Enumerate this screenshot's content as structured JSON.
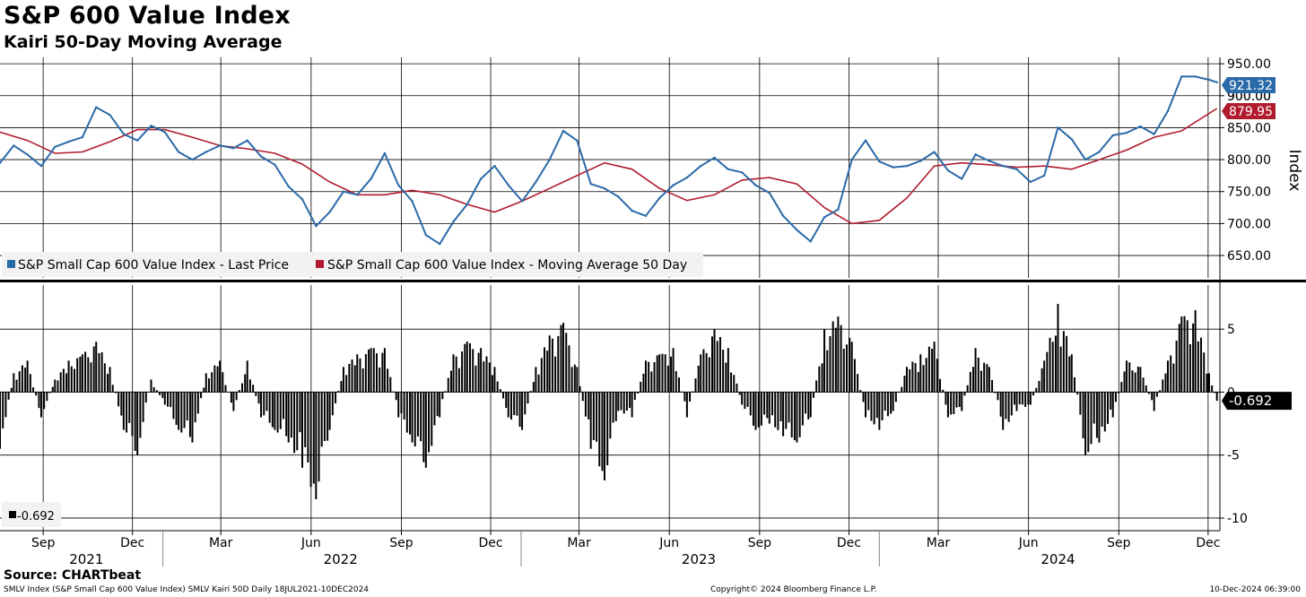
{
  "title": "S&P 600 Value Index",
  "subtitle": "Kairi 50-Day Moving Average",
  "source": "Source: CHARTbeat",
  "footer": {
    "left": "SMLV Index (S&P Small Cap 600 Value Index) SMLV Kairi 50D  Daily 18JUL2021-10DEC2024",
    "center": "Copyright© 2024 Bloomberg Finance L.P.",
    "right": "10-Dec-2024 06:39:00"
  },
  "colors": {
    "price": "#2a6aa8",
    "ma": "#b01c2e",
    "kairi": "#000000",
    "grid": "#000000"
  },
  "chart_data": [
    {
      "type": "line",
      "y_axis_title": "Index",
      "ylim": [
        615,
        960
      ],
      "y_ticks": [
        "950.00",
        "900.00",
        "850.00",
        "800.00",
        "750.00",
        "700.00",
        "650.00"
      ],
      "y_tick_values": [
        950,
        900,
        850,
        800,
        750,
        700,
        650
      ],
      "legend": [
        "S&P Small Cap 600 Value Index - Last Price",
        "S&P Small Cap 600 Value Index - Moving Average 50 Day"
      ],
      "legend_position": "bottom-left",
      "last_labels": {
        "price": "921.32",
        "ma": "879.95",
        "hidden": "900.00"
      },
      "series": [
        {
          "name": "S&P Small Cap 600 Value Index - Last Price",
          "x": [
            "2021-07-19",
            "2021-08-02",
            "2021-08-16",
            "2021-08-30",
            "2021-09-13",
            "2021-09-27",
            "2021-10-11",
            "2021-10-25",
            "2021-11-08",
            "2021-11-22",
            "2021-12-06",
            "2021-12-20",
            "2022-01-03",
            "2022-01-17",
            "2022-01-31",
            "2022-02-14",
            "2022-02-28",
            "2022-03-14",
            "2022-03-28",
            "2022-04-11",
            "2022-04-25",
            "2022-05-09",
            "2022-05-23",
            "2022-06-06",
            "2022-06-20",
            "2022-07-04",
            "2022-07-18",
            "2022-08-01",
            "2022-08-15",
            "2022-08-29",
            "2022-09-12",
            "2022-09-26",
            "2022-10-10",
            "2022-10-24",
            "2022-11-07",
            "2022-11-21",
            "2022-12-05",
            "2022-12-19",
            "2023-01-02",
            "2023-01-16",
            "2023-01-30",
            "2023-02-13",
            "2023-02-27",
            "2023-03-13",
            "2023-03-27",
            "2023-04-10",
            "2023-04-24",
            "2023-05-08",
            "2023-05-22",
            "2023-06-05",
            "2023-06-19",
            "2023-07-03",
            "2023-07-17",
            "2023-07-31",
            "2023-08-14",
            "2023-08-28",
            "2023-09-11",
            "2023-09-25",
            "2023-10-09",
            "2023-10-23",
            "2023-11-06",
            "2023-11-20",
            "2023-12-04",
            "2023-12-18",
            "2024-01-01",
            "2024-01-15",
            "2024-01-29",
            "2024-02-12",
            "2024-02-26",
            "2024-03-11",
            "2024-03-25",
            "2024-04-08",
            "2024-04-22",
            "2024-05-06",
            "2024-05-20",
            "2024-06-03",
            "2024-06-17",
            "2024-07-01",
            "2024-07-15",
            "2024-07-29",
            "2024-08-12",
            "2024-08-26",
            "2024-09-09",
            "2024-09-23",
            "2024-10-07",
            "2024-10-21",
            "2024-11-04",
            "2024-11-18",
            "2024-12-02",
            "2024-12-10"
          ],
          "values": [
            795,
            822,
            808,
            790,
            820,
            828,
            835,
            882,
            870,
            840,
            830,
            853,
            843,
            812,
            800,
            812,
            822,
            818,
            830,
            805,
            792,
            758,
            738,
            696,
            718,
            750,
            745,
            770,
            810,
            760,
            735,
            682,
            668,
            703,
            730,
            770,
            790,
            760,
            735,
            765,
            800,
            845,
            830,
            762,
            755,
            742,
            720,
            712,
            740,
            760,
            772,
            790,
            803,
            785,
            780,
            760,
            748,
            712,
            690,
            672,
            710,
            722,
            800,
            830,
            797,
            788,
            790,
            798,
            812,
            783,
            770,
            808,
            798,
            790,
            785,
            765,
            775,
            850,
            832,
            800,
            812,
            838,
            842,
            852,
            840,
            876,
            930,
            930,
            925,
            921
          ]
        },
        {
          "name": "S&P Small Cap 600 Value Index - Moving Average 50 Day",
          "x": [
            "2021-07-19",
            "2021-08-16",
            "2021-09-13",
            "2021-10-11",
            "2021-11-08",
            "2021-12-06",
            "2022-01-03",
            "2022-01-31",
            "2022-02-28",
            "2022-03-28",
            "2022-04-25",
            "2022-05-23",
            "2022-06-20",
            "2022-07-18",
            "2022-08-15",
            "2022-09-12",
            "2022-10-10",
            "2022-11-07",
            "2022-12-05",
            "2023-01-02",
            "2023-01-30",
            "2023-02-27",
            "2023-03-27",
            "2023-04-24",
            "2023-05-22",
            "2023-06-19",
            "2023-07-17",
            "2023-08-14",
            "2023-09-11",
            "2023-10-09",
            "2023-11-06",
            "2023-12-04",
            "2024-01-01",
            "2024-01-29",
            "2024-02-26",
            "2024-03-25",
            "2024-04-22",
            "2024-05-20",
            "2024-06-17",
            "2024-07-15",
            "2024-08-12",
            "2024-09-09",
            "2024-10-07",
            "2024-11-04",
            "2024-12-10"
          ],
          "values": [
            843,
            830,
            810,
            812,
            828,
            847,
            847,
            835,
            822,
            817,
            810,
            793,
            765,
            745,
            745,
            752,
            745,
            730,
            718,
            735,
            755,
            775,
            795,
            785,
            755,
            736,
            745,
            768,
            772,
            762,
            725,
            700,
            705,
            740,
            790,
            795,
            792,
            788,
            790,
            785,
            800,
            815,
            835,
            845,
            880
          ]
        }
      ]
    },
    {
      "type": "bar",
      "ylim": [
        -11,
        8.5
      ],
      "y_ticks": [
        "5",
        "0",
        "-5",
        "-10"
      ],
      "y_tick_values": [
        5,
        0,
        -5,
        -10
      ],
      "legend": [
        "-0.692"
      ],
      "legend_position": "bottom-left",
      "last_value_label": "-0.692",
      "series": [
        {
          "x": [
            "2021-07-19",
            "2021-08-02",
            "2021-08-16",
            "2021-08-30",
            "2021-09-13",
            "2021-09-27",
            "2021-10-11",
            "2021-10-25",
            "2021-11-08",
            "2021-11-22",
            "2021-12-06",
            "2021-12-20",
            "2022-01-03",
            "2022-01-17",
            "2022-01-31",
            "2022-02-14",
            "2022-02-28",
            "2022-03-14",
            "2022-03-28",
            "2022-04-11",
            "2022-04-25",
            "2022-05-09",
            "2022-05-23",
            "2022-06-06",
            "2022-06-20",
            "2022-07-04",
            "2022-07-18",
            "2022-08-01",
            "2022-08-15",
            "2022-08-29",
            "2022-09-12",
            "2022-09-26",
            "2022-10-10",
            "2022-10-24",
            "2022-11-07",
            "2022-11-21",
            "2022-12-05",
            "2022-12-19",
            "2023-01-02",
            "2023-01-16",
            "2023-01-30",
            "2023-02-13",
            "2023-02-27",
            "2023-03-13",
            "2023-03-27",
            "2023-04-10",
            "2023-04-24",
            "2023-05-08",
            "2023-05-22",
            "2023-06-05",
            "2023-06-19",
            "2023-07-03",
            "2023-07-17",
            "2023-07-31",
            "2023-08-14",
            "2023-08-28",
            "2023-09-11",
            "2023-09-25",
            "2023-10-09",
            "2023-10-23",
            "2023-11-06",
            "2023-11-20",
            "2023-12-04",
            "2023-12-18",
            "2024-01-01",
            "2024-01-15",
            "2024-01-29",
            "2024-02-12",
            "2024-02-26",
            "2024-03-11",
            "2024-03-25",
            "2024-04-08",
            "2024-04-22",
            "2024-05-06",
            "2024-05-20",
            "2024-06-03",
            "2024-06-17",
            "2024-07-01",
            "2024-07-15",
            "2024-07-29",
            "2024-08-12",
            "2024-08-26",
            "2024-09-09",
            "2024-09-23",
            "2024-10-07",
            "2024-10-21",
            "2024-11-04",
            "2024-11-18",
            "2024-12-02",
            "2024-12-10"
          ],
          "values": [
            -4.5,
            1.5,
            2.5,
            -2,
            1,
            2.5,
            3,
            4,
            2,
            -3,
            -5,
            1,
            -1,
            -3,
            -4,
            1.5,
            2.5,
            -1.5,
            2.5,
            -2,
            -3,
            -4,
            -6,
            -8.5,
            -3,
            2,
            3,
            3.5,
            3.5,
            -2,
            -4,
            -6,
            -2,
            3,
            4,
            3.5,
            2,
            -2,
            -3,
            2,
            4.5,
            5.5,
            2,
            -4.5,
            -7,
            -1.5,
            -2,
            2.5,
            3,
            3.5,
            -2,
            3,
            5,
            3.5,
            -1,
            -3,
            -2.5,
            -3.5,
            -4,
            -2,
            5,
            6,
            4,
            -2,
            -3,
            -1.5,
            2,
            3,
            4,
            -2,
            -1.5,
            3.5,
            2,
            -3,
            -1.5,
            -1,
            2.5,
            7,
            3,
            -5,
            -4,
            -2,
            2.5,
            2,
            -1.5,
            2.5,
            6,
            6.5,
            1.5,
            -0.692
          ]
        }
      ]
    }
  ],
  "x_axis": {
    "months": [
      {
        "label": "Sep",
        "date": "2021-09-01"
      },
      {
        "label": "Dec",
        "date": "2021-12-01"
      },
      {
        "label": "Mar",
        "date": "2022-03-01"
      },
      {
        "label": "Jun",
        "date": "2022-06-01"
      },
      {
        "label": "Sep",
        "date": "2022-09-01"
      },
      {
        "label": "Dec",
        "date": "2022-12-01"
      },
      {
        "label": "Mar",
        "date": "2023-03-01"
      },
      {
        "label": "Jun",
        "date": "2023-06-01"
      },
      {
        "label": "Sep",
        "date": "2023-09-01"
      },
      {
        "label": "Dec",
        "date": "2023-12-01"
      },
      {
        "label": "Mar",
        "date": "2024-03-01"
      },
      {
        "label": "Jun",
        "date": "2024-06-01"
      },
      {
        "label": "Sep",
        "date": "2024-09-01"
      },
      {
        "label": "Dec",
        "date": "2024-12-01"
      }
    ],
    "years": [
      {
        "label": "2021",
        "date": "2021-10-15"
      },
      {
        "label": "2022",
        "date": "2022-07-01"
      },
      {
        "label": "2023",
        "date": "2023-07-01"
      },
      {
        "label": "2024",
        "date": "2024-07-01"
      }
    ],
    "year_dividers": [
      "2022-01-01",
      "2023-01-01",
      "2024-01-01"
    ]
  }
}
